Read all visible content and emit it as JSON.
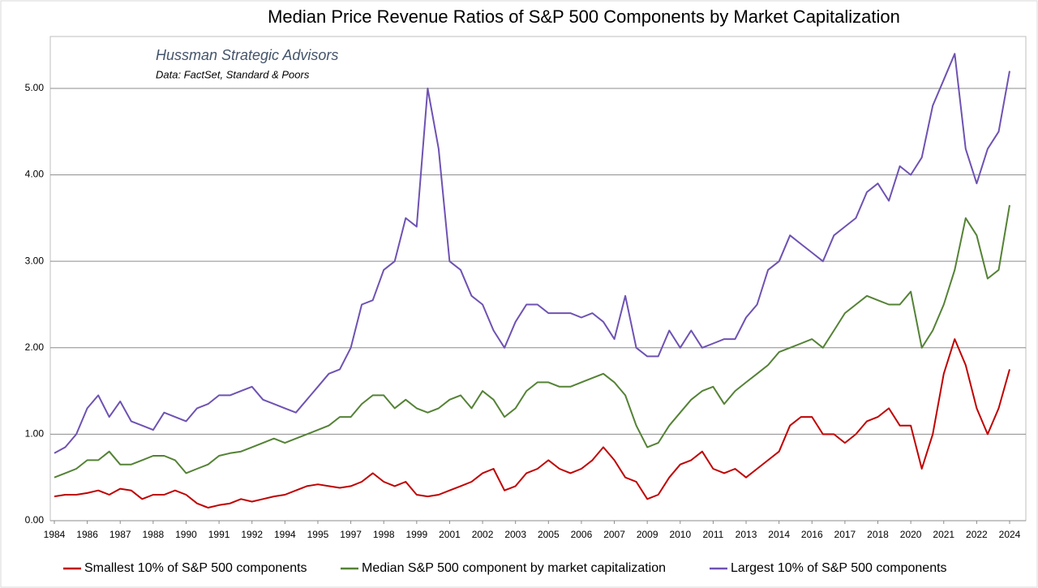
{
  "chart_data": {
    "type": "line",
    "title": "Median Price Revenue Ratios of S&P 500 Components by Market Capitalization",
    "annotations": [
      "Hussman Strategic Advisors",
      "Data: FactSet, Standard & Poors"
    ],
    "categories": [
      "1984",
      null,
      null,
      "1986",
      null,
      null,
      "1987",
      null,
      null,
      "1988",
      null,
      null,
      "1990",
      null,
      null,
      "1991",
      null,
      null,
      "1992",
      null,
      null,
      "1994",
      null,
      null,
      "1995",
      null,
      null,
      "1997",
      null,
      null,
      "1998",
      null,
      null,
      "1999",
      null,
      null,
      "2001",
      null,
      null,
      "2002",
      null,
      null,
      "2003",
      null,
      null,
      "2005",
      null,
      null,
      "2006",
      null,
      null,
      "2007",
      null,
      null,
      "2009",
      null,
      null,
      "2010",
      null,
      null,
      "2011",
      null,
      null,
      "2013",
      null,
      null,
      "2014",
      null,
      null,
      "2016",
      null,
      null,
      "2017",
      null,
      null,
      "2018",
      null,
      null,
      "2020",
      null,
      null,
      "2021",
      null,
      null,
      "2022",
      null,
      null,
      "2024"
    ],
    "series": [
      {
        "name": "Smallest 10% of S&P 500 components",
        "color": "#c00000",
        "values": [
          0.28,
          0.3,
          0.3,
          0.32,
          0.35,
          0.3,
          0.37,
          0.35,
          0.25,
          0.3,
          0.3,
          0.35,
          0.3,
          0.2,
          0.15,
          0.18,
          0.2,
          0.25,
          0.22,
          0.25,
          0.28,
          0.3,
          0.35,
          0.4,
          0.42,
          0.4,
          0.38,
          0.4,
          0.45,
          0.55,
          0.45,
          0.4,
          0.45,
          0.3,
          0.28,
          0.3,
          0.35,
          0.4,
          0.45,
          0.55,
          0.6,
          0.35,
          0.4,
          0.55,
          0.6,
          0.7,
          0.6,
          0.55,
          0.6,
          0.7,
          0.85,
          0.7,
          0.5,
          0.45,
          0.25,
          0.3,
          0.5,
          0.65,
          0.7,
          0.8,
          0.6,
          0.55,
          0.6,
          0.5,
          0.6,
          0.7,
          0.8,
          1.1,
          1.2,
          1.2,
          1.0,
          1.0,
          0.9,
          1.0,
          1.15,
          1.2,
          1.3,
          1.1,
          1.1,
          0.6,
          1.0,
          1.7,
          2.1,
          1.8,
          1.3,
          1.0,
          1.3,
          1.75
        ]
      },
      {
        "name": "Median S&P 500 component by market capitalization",
        "color": "#548235",
        "values": [
          0.5,
          0.55,
          0.6,
          0.7,
          0.7,
          0.8,
          0.65,
          0.65,
          0.7,
          0.75,
          0.75,
          0.7,
          0.55,
          0.6,
          0.65,
          0.75,
          0.78,
          0.8,
          0.85,
          0.9,
          0.95,
          0.9,
          0.95,
          1.0,
          1.05,
          1.1,
          1.2,
          1.2,
          1.35,
          1.45,
          1.45,
          1.3,
          1.4,
          1.3,
          1.25,
          1.3,
          1.4,
          1.45,
          1.3,
          1.5,
          1.4,
          1.2,
          1.3,
          1.5,
          1.6,
          1.6,
          1.55,
          1.55,
          1.6,
          1.65,
          1.7,
          1.6,
          1.45,
          1.1,
          0.85,
          0.9,
          1.1,
          1.25,
          1.4,
          1.5,
          1.55,
          1.35,
          1.5,
          1.6,
          1.7,
          1.8,
          1.95,
          2.0,
          2.05,
          2.1,
          2.0,
          2.2,
          2.4,
          2.5,
          2.6,
          2.55,
          2.5,
          2.5,
          2.65,
          2.0,
          2.2,
          2.5,
          2.9,
          3.5,
          3.3,
          2.8,
          2.9,
          3.65
        ]
      },
      {
        "name": "Largest 10% of S&P 500 components",
        "color": "#6e52b3",
        "values": [
          0.78,
          0.85,
          1.0,
          1.3,
          1.45,
          1.2,
          1.38,
          1.15,
          1.1,
          1.05,
          1.25,
          1.2,
          1.15,
          1.3,
          1.35,
          1.45,
          1.45,
          1.5,
          1.55,
          1.4,
          1.35,
          1.3,
          1.25,
          1.4,
          1.55,
          1.7,
          1.75,
          2.0,
          2.5,
          2.55,
          2.9,
          3.0,
          3.5,
          3.4,
          5.0,
          4.3,
          3.0,
          2.9,
          2.6,
          2.5,
          2.2,
          2.0,
          2.3,
          2.5,
          2.5,
          2.4,
          2.4,
          2.4,
          2.35,
          2.4,
          2.3,
          2.1,
          2.6,
          2.0,
          1.9,
          1.9,
          2.2,
          2.0,
          2.2,
          2.0,
          2.05,
          2.1,
          2.1,
          2.35,
          2.5,
          2.9,
          3.0,
          3.3,
          3.2,
          3.1,
          3.0,
          3.3,
          3.4,
          3.5,
          3.8,
          3.9,
          3.7,
          4.1,
          4.0,
          4.2,
          4.8,
          5.1,
          5.4,
          4.3,
          3.9,
          4.3,
          4.5,
          5.2
        ]
      }
    ],
    "ylim": [
      0,
      5.6
    ],
    "yticks": [
      {
        "value": 0,
        "label": "0.00"
      },
      {
        "value": 1,
        "label": "1.00"
      },
      {
        "value": 2,
        "label": "2.00"
      },
      {
        "value": 3,
        "label": "3.00"
      },
      {
        "value": 4,
        "label": "4.00"
      },
      {
        "value": 5,
        "label": "5.00"
      }
    ],
    "grid": true,
    "legend": "bottom"
  }
}
